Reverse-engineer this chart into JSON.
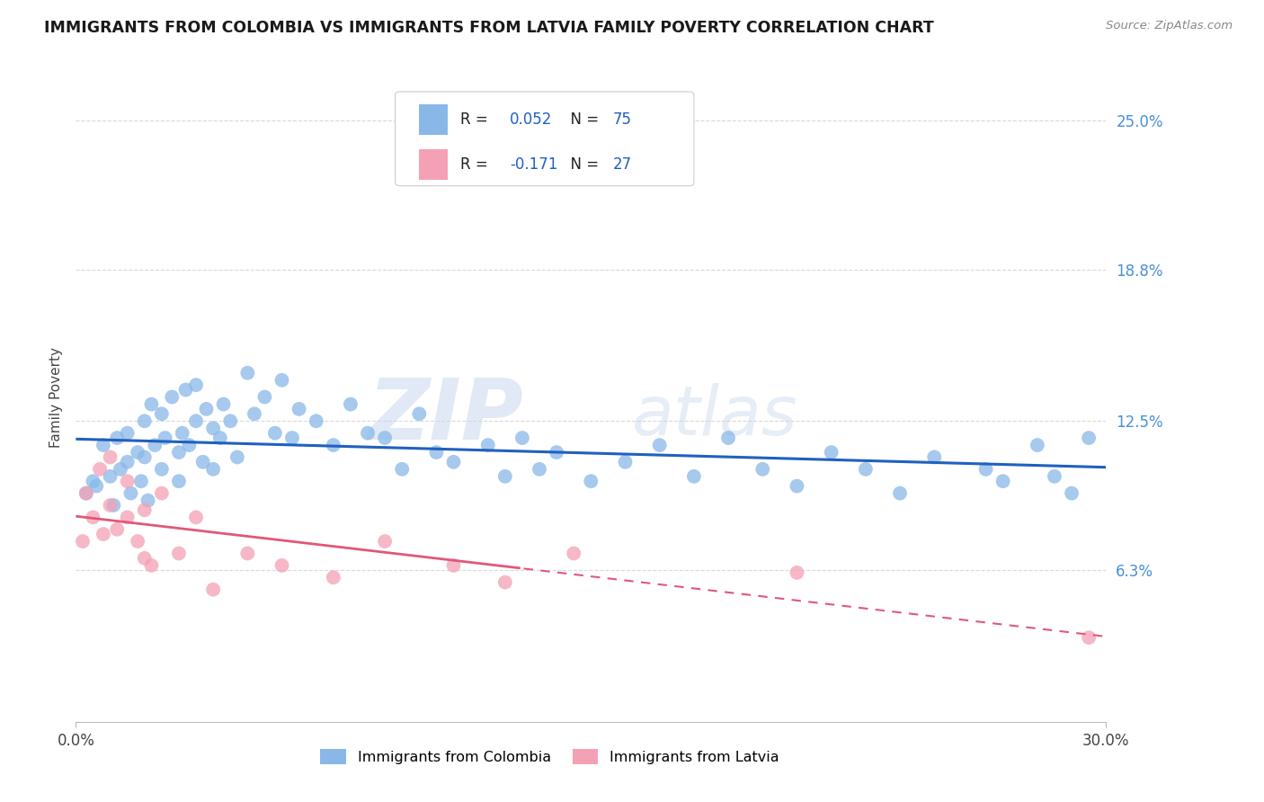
{
  "title": "IMMIGRANTS FROM COLOMBIA VS IMMIGRANTS FROM LATVIA FAMILY POVERTY CORRELATION CHART",
  "source": "Source: ZipAtlas.com",
  "ylabel": "Family Poverty",
  "xlim": [
    0.0,
    30.0
  ],
  "ylim": [
    0.0,
    27.0
  ],
  "yticks": [
    6.3,
    12.5,
    18.8,
    25.0
  ],
  "ytick_labels": [
    "6.3%",
    "12.5%",
    "18.8%",
    "25.0%"
  ],
  "xticks": [
    0.0,
    30.0
  ],
  "xtick_labels": [
    "0.0%",
    "30.0%"
  ],
  "colombia_color": "#89B8E8",
  "latvia_color": "#F4A0B5",
  "trend_colombia_color": "#2060C0",
  "trend_latvia_color": "#E05878",
  "colombia_R": 0.052,
  "colombia_N": 75,
  "latvia_R": -0.171,
  "latvia_N": 27,
  "colombia_scatter_x": [
    0.3,
    0.5,
    0.6,
    0.8,
    1.0,
    1.1,
    1.2,
    1.3,
    1.5,
    1.5,
    1.6,
    1.8,
    1.9,
    2.0,
    2.0,
    2.1,
    2.2,
    2.3,
    2.5,
    2.5,
    2.6,
    2.8,
    3.0,
    3.0,
    3.1,
    3.2,
    3.3,
    3.5,
    3.5,
    3.7,
    3.8,
    4.0,
    4.0,
    4.2,
    4.3,
    4.5,
    4.7,
    5.0,
    5.2,
    5.5,
    5.8,
    6.0,
    6.3,
    6.5,
    7.0,
    7.5,
    8.0,
    8.5,
    9.0,
    9.5,
    10.0,
    10.5,
    11.0,
    12.0,
    12.5,
    13.0,
    13.5,
    14.0,
    15.0,
    16.0,
    17.0,
    18.0,
    19.0,
    20.0,
    21.0,
    22.0,
    23.0,
    24.0,
    25.0,
    26.5,
    27.0,
    28.0,
    28.5,
    29.0,
    29.5
  ],
  "colombia_scatter_y": [
    9.5,
    10.0,
    9.8,
    11.5,
    10.2,
    9.0,
    11.8,
    10.5,
    12.0,
    10.8,
    9.5,
    11.2,
    10.0,
    12.5,
    11.0,
    9.2,
    13.2,
    11.5,
    12.8,
    10.5,
    11.8,
    13.5,
    11.2,
    10.0,
    12.0,
    13.8,
    11.5,
    14.0,
    12.5,
    10.8,
    13.0,
    12.2,
    10.5,
    11.8,
    13.2,
    12.5,
    11.0,
    14.5,
    12.8,
    13.5,
    12.0,
    14.2,
    11.8,
    13.0,
    12.5,
    11.5,
    13.2,
    12.0,
    11.8,
    10.5,
    12.8,
    11.2,
    10.8,
    11.5,
    10.2,
    11.8,
    10.5,
    11.2,
    10.0,
    10.8,
    11.5,
    10.2,
    11.8,
    10.5,
    9.8,
    11.2,
    10.5,
    9.5,
    11.0,
    10.5,
    10.0,
    11.5,
    10.2,
    9.5,
    11.8
  ],
  "latvia_scatter_x": [
    0.2,
    0.3,
    0.5,
    0.7,
    0.8,
    1.0,
    1.0,
    1.2,
    1.5,
    1.5,
    1.8,
    2.0,
    2.0,
    2.2,
    2.5,
    3.0,
    3.5,
    4.0,
    5.0,
    6.0,
    7.5,
    9.0,
    11.0,
    12.5,
    14.5,
    21.0,
    29.5
  ],
  "latvia_scatter_y": [
    7.5,
    9.5,
    8.5,
    10.5,
    7.8,
    9.0,
    11.0,
    8.0,
    8.5,
    10.0,
    7.5,
    6.8,
    8.8,
    6.5,
    9.5,
    7.0,
    8.5,
    5.5,
    7.0,
    6.5,
    6.0,
    7.5,
    6.5,
    5.8,
    7.0,
    6.2,
    3.5
  ],
  "watermark_zip": "ZIP",
  "watermark_atlas": "atlas",
  "background_color": "#FFFFFF",
  "grid_color": "#D0D0D0",
  "legend_r_col": "R = 0.052",
  "legend_n_col": "N = 75",
  "legend_r_lat": "R = -0.171",
  "legend_n_lat": "N = 27",
  "legend_text_color_r": "#222222",
  "legend_text_color_n": "#2060C0",
  "bottom_legend_col": "Immigrants from Colombia",
  "bottom_legend_lat": "Immigrants from Latvia"
}
